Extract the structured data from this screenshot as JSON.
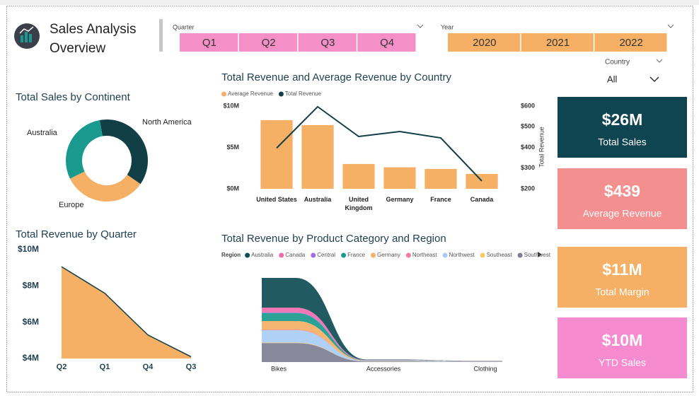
{
  "header": {
    "title": "Sales Analysis Overview"
  },
  "slicers": {
    "quarter": {
      "label": "Quarter",
      "options": [
        "Q1",
        "Q2",
        "Q3",
        "Q4"
      ],
      "color": "#f48fc8"
    },
    "year": {
      "label": "Year",
      "options": [
        "2020",
        "2021",
        "2022"
      ],
      "color": "#f5b066"
    },
    "country": {
      "label": "Country",
      "selected": "All"
    }
  },
  "cards": [
    {
      "value": "$26M",
      "label": "Total Sales",
      "color": "#0f4550"
    },
    {
      "value": "$439",
      "label": "Average Revenue",
      "color": "#f48f8f"
    },
    {
      "value": "$11M",
      "label": "Total Margin",
      "color": "#f5b066"
    },
    {
      "value": "$10M",
      "label": "YTD Sales",
      "color": "#f78bcf"
    }
  ],
  "chart_data": [
    {
      "type": "donut",
      "title": "Total Sales by Continent",
      "categories": [
        "North America",
        "Europe",
        "Australia"
      ],
      "values": [
        37.5,
        33,
        29.5
      ],
      "colors": [
        "#123f45",
        "#f5b066",
        "#1a9a8e"
      ]
    },
    {
      "type": "bar",
      "title": "Total Revenue and Average Revenue by Country",
      "categories": [
        "United States",
        "Australia",
        "United Kingdom",
        "Germany",
        "France",
        "Canada"
      ],
      "series": [
        {
          "name": "Average Revenue",
          "color": "#f5b066",
          "values": [
            8.3,
            7.7,
            3.0,
            2.6,
            2.4,
            1.8
          ]
        },
        {
          "name": "Total Revenue",
          "type": "line",
          "axis": "y2",
          "color": "#123f45",
          "values": [
            397,
            597,
            453,
            477,
            446,
            238
          ]
        }
      ],
      "ylim": [
        0,
        10
      ],
      "yticks": [
        {
          "value": 0,
          "label": "$0M"
        },
        {
          "value": 5,
          "label": "$5M"
        },
        {
          "value": 10,
          "label": "$10M"
        }
      ],
      "y2lim": [
        200,
        600
      ],
      "y2ticks": [
        {
          "value": 200,
          "label": "$200"
        },
        {
          "value": 300,
          "label": "$300"
        },
        {
          "value": 400,
          "label": "$400"
        },
        {
          "value": 500,
          "label": "$500"
        },
        {
          "value": 600,
          "label": "$600"
        }
      ],
      "y2label": "Total Revenue"
    },
    {
      "type": "area",
      "title": "Total Revenue by Quarter",
      "categories": [
        "Q2",
        "Q1",
        "Q4",
        "Q3"
      ],
      "values": [
        9.06,
        7.6,
        5.3,
        4.1
      ],
      "color": "#f5b066",
      "line_color": "#123f45",
      "ylim": [
        4,
        10
      ],
      "yticks": [
        {
          "value": 4,
          "label": "$4M"
        },
        {
          "value": 6,
          "label": "$6M"
        },
        {
          "value": 8,
          "label": "$8M"
        },
        {
          "value": 10,
          "label": "$10M"
        }
      ]
    },
    {
      "type": "ribbon",
      "title": "Total Revenue by Product Category and Region",
      "legend_title": "Region",
      "categories": [
        "Bikes",
        "Accessories",
        "Clothing"
      ],
      "series": [
        {
          "name": "Australia",
          "color": "#0f4c55",
          "values": [
            5.5,
            0.1,
            0.04
          ]
        },
        {
          "name": "Canada",
          "color": "#f06ab0",
          "values": [
            0.9,
            0.05,
            0.03
          ]
        },
        {
          "name": "Central",
          "color": "#a56de2",
          "values": [
            0.1,
            0.01,
            0.01
          ]
        },
        {
          "name": "France",
          "color": "#1a9a8e",
          "values": [
            1.5,
            0.05,
            0.03
          ]
        },
        {
          "name": "Germany",
          "color": "#f5b066",
          "values": [
            1.6,
            0.05,
            0.03
          ]
        },
        {
          "name": "Northeast",
          "color": "#f27b9e",
          "values": [
            0.1,
            0.01,
            0.01
          ]
        },
        {
          "name": "Northwest",
          "color": "#a9cdf5",
          "values": [
            2.3,
            0.08,
            0.04
          ]
        },
        {
          "name": "Southeast",
          "color": "#f7c96b",
          "values": [
            0.1,
            0.01,
            0.01
          ]
        },
        {
          "name": "Southwest",
          "color": "#7d7f93",
          "values": [
            3.5,
            0.1,
            0.05
          ]
        }
      ]
    }
  ]
}
